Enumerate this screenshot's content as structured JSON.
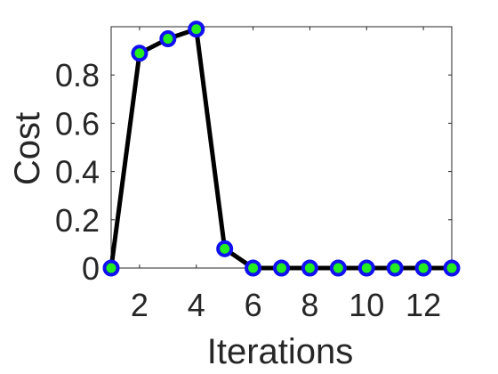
{
  "chart_data": {
    "type": "line",
    "xlabel": "Iterations",
    "ylabel": "Cost",
    "xlim": [
      1,
      13
    ],
    "ylim": [
      0,
      1
    ],
    "x_ticks": [
      2,
      4,
      6,
      8,
      10,
      12
    ],
    "y_ticks": [
      0,
      0.2,
      0.4,
      0.6,
      0.8
    ],
    "x_tick_labels": [
      "2",
      "4",
      "6",
      "8",
      "10",
      "12"
    ],
    "y_tick_labels": [
      "0",
      "0.2",
      "0.4",
      "0.6",
      "0.8"
    ],
    "box": true,
    "grid": false,
    "line_color": "#000000",
    "marker_face_color": "#22ee22",
    "marker_edge_color": "#1010f0",
    "series": [
      {
        "x": [
          1,
          2,
          3,
          4,
          5,
          6,
          7,
          8,
          9,
          10,
          11,
          12,
          13
        ],
        "values": [
          0,
          0.89,
          0.95,
          0.99,
          0.08,
          0,
          0,
          0,
          0,
          0,
          0,
          0,
          0
        ]
      }
    ]
  }
}
